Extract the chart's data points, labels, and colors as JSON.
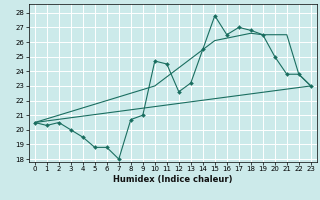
{
  "xlabel": "Humidex (Indice chaleur)",
  "bg_color": "#cceaea",
  "grid_color": "#b0d8d8",
  "line_color": "#1a6e60",
  "xlim": [
    -0.5,
    23.5
  ],
  "ylim": [
    17.8,
    28.6
  ],
  "yticks": [
    18,
    19,
    20,
    21,
    22,
    23,
    24,
    25,
    26,
    27,
    28
  ],
  "xticks": [
    0,
    1,
    2,
    3,
    4,
    5,
    6,
    7,
    8,
    9,
    10,
    11,
    12,
    13,
    14,
    15,
    16,
    17,
    18,
    19,
    20,
    21,
    22,
    23
  ],
  "line1_x": [
    0,
    1,
    2,
    3,
    4,
    5,
    6,
    7,
    8,
    9,
    10,
    11,
    12,
    13,
    14,
    15,
    16,
    17,
    18,
    19,
    20,
    21,
    22,
    23
  ],
  "line1_y": [
    20.5,
    20.3,
    20.5,
    20.0,
    19.5,
    18.8,
    18.8,
    18.0,
    20.7,
    21.0,
    24.7,
    24.5,
    22.6,
    23.2,
    25.5,
    27.8,
    26.5,
    27.0,
    26.8,
    26.5,
    25.0,
    23.8,
    23.8,
    23.0
  ],
  "line2_x": [
    0,
    23
  ],
  "line2_y": [
    20.5,
    23.0
  ],
  "line3_x": [
    0,
    10,
    15,
    18,
    19,
    20,
    21,
    22,
    23
  ],
  "line3_y": [
    20.5,
    23.0,
    26.1,
    26.6,
    26.5,
    26.5,
    26.5,
    23.8,
    23.0
  ]
}
